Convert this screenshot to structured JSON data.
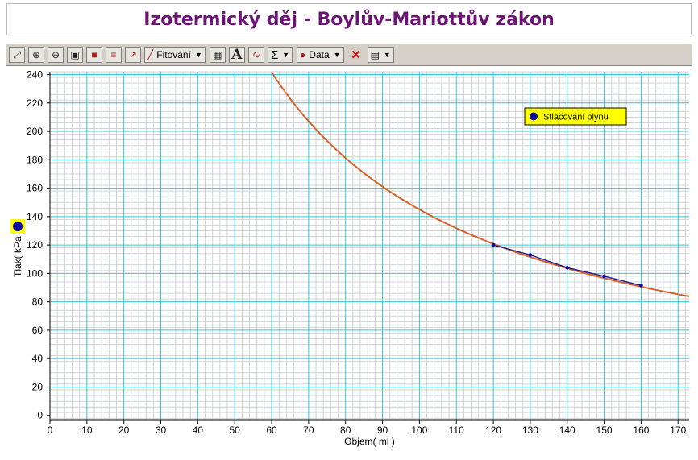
{
  "window": {
    "title": "Izotermický děj - Boylův-Mariottův zákon"
  },
  "toolbar": {
    "fit_label": "Fitování",
    "data_label": "Data",
    "icons": [
      "autoscale-icon",
      "zoom-in-icon",
      "zoom-out-icon",
      "zoom-box-icon",
      "lock-icon",
      "axis-icon",
      "tangent-icon",
      "fit-icon",
      "calculator-icon",
      "text-icon",
      "draw-icon",
      "sigma-icon",
      "data-icon",
      "delete-icon",
      "grid-options-icon"
    ]
  },
  "colors": {
    "title": "#6b1474",
    "grid_major": "#33c6d6",
    "grid_minor": "#cfd3d6",
    "fit_curve": "#d5622a",
    "data_line": "#1c1c8c",
    "data_point": "#0a0aa0",
    "legend_bg": "#ffff00"
  },
  "chart_data": {
    "type": "scatter",
    "title": "Izotermický děj - Boylův-Mariottův zákon",
    "xlabel": "Objem( ml )",
    "ylabel": "Tlak( kPa )",
    "xlim": [
      0,
      173
    ],
    "ylim": [
      -3,
      242
    ],
    "x_ticks": [
      0,
      10,
      20,
      30,
      40,
      50,
      60,
      70,
      80,
      90,
      100,
      110,
      120,
      130,
      140,
      150,
      160,
      170
    ],
    "y_ticks": [
      0,
      20,
      40,
      60,
      80,
      100,
      120,
      140,
      160,
      180,
      200,
      220,
      240
    ],
    "x_tick_labels": [
      "0",
      "10",
      "20",
      "30",
      "40",
      "50",
      "60",
      "70",
      "80",
      "90",
      "100",
      "110",
      "120",
      "130",
      "140",
      "150",
      "160",
      "170"
    ],
    "y_tick_labels": [
      "0",
      "20",
      "40",
      "60",
      "80",
      "100",
      "120",
      "140",
      "160",
      "180",
      "200",
      "220",
      "240"
    ],
    "grid": true,
    "legend_position": "top-right",
    "series": [
      {
        "name": "Stlačování plynu",
        "x": [
          120,
          130,
          140,
          150,
          160
        ],
        "y": [
          120,
          113,
          104,
          98,
          91.5
        ]
      }
    ],
    "fit": {
      "type": "power",
      "constant": 14500,
      "x_range": [
        58,
        173
      ]
    }
  }
}
